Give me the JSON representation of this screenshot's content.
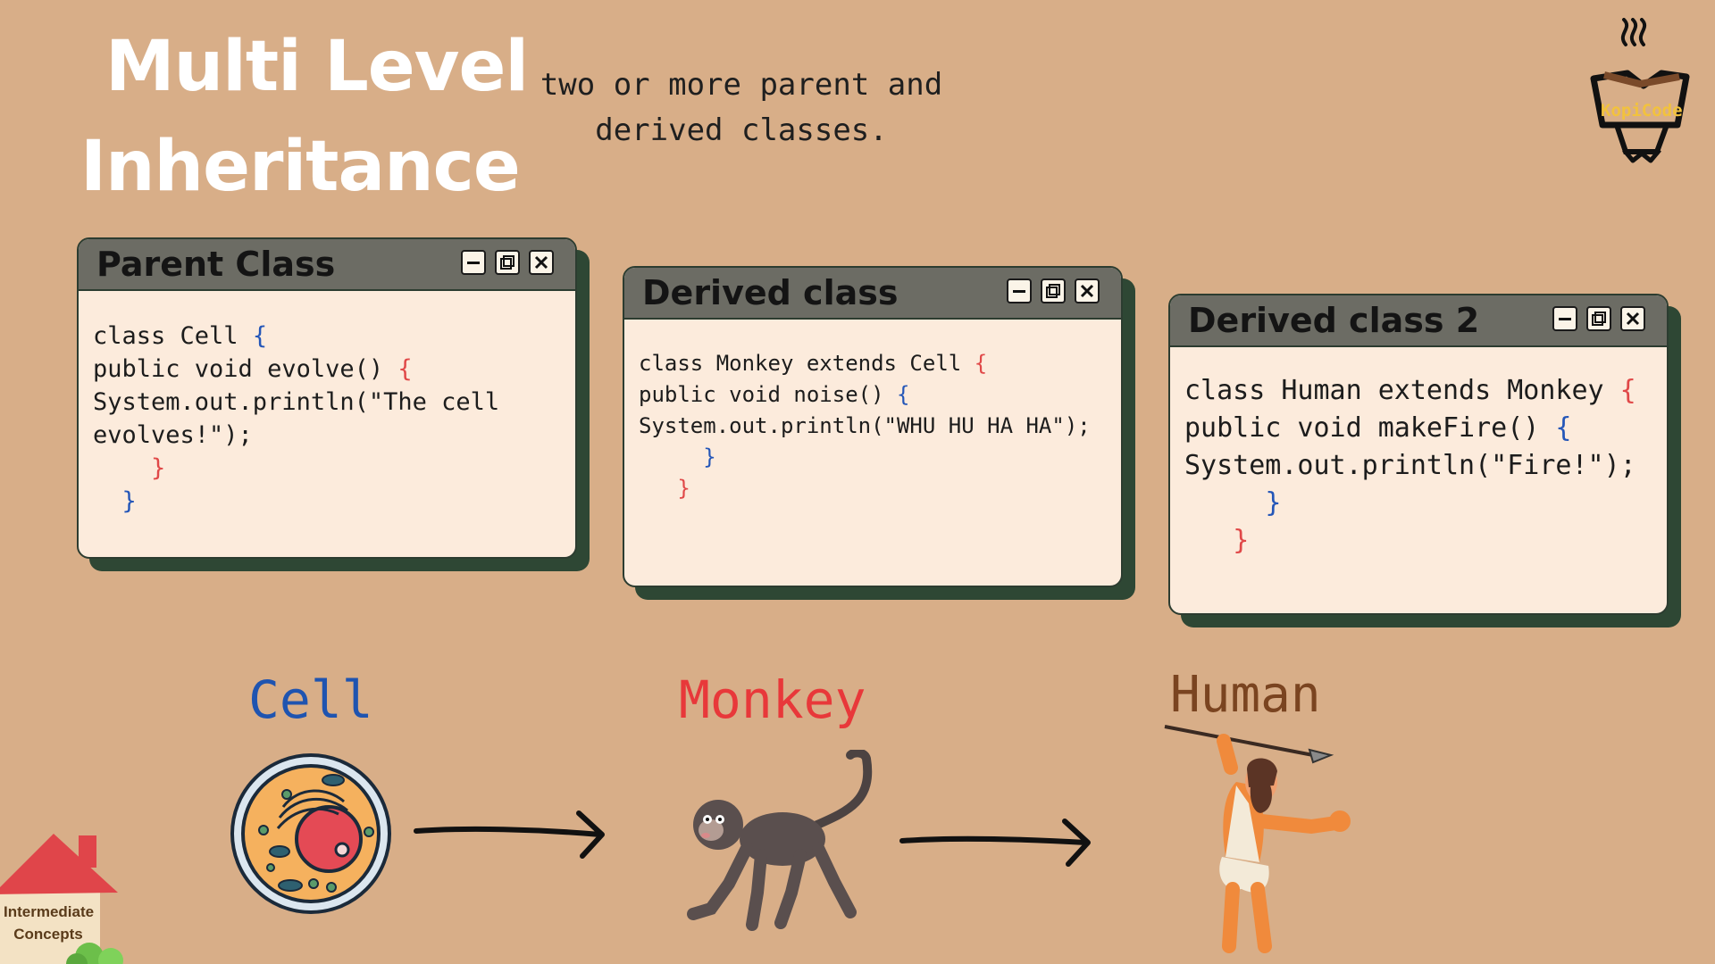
{
  "header": {
    "title_line1": "Multi Level",
    "title_line2": "Inheritance",
    "subtitle_line1": "two or more parent and",
    "subtitle_line2": "derived classes."
  },
  "logo": {
    "text": "KopiCode"
  },
  "windows": [
    {
      "title": "Parent Class",
      "lines": [
        "class Cell",
        "public void evolve()",
        "System.out.println(\"The cell",
        "evolves!\");"
      ]
    },
    {
      "title": "Derived class",
      "lines": [
        "class Monkey extends Cell",
        "public void noise()",
        "System.out.println(\"WHU HU HA HA\");"
      ]
    },
    {
      "title": "Derived class 2",
      "lines": [
        "class Human extends Monkey",
        "public void makeFire()",
        "System.out.println(\"Fire!\");"
      ]
    }
  ],
  "labels": {
    "cell": "Cell",
    "monkey": "Monkey",
    "human": "Human"
  },
  "badge": {
    "line1": "Intermediate",
    "line2": "Concepts"
  },
  "colors": {
    "background": "#d8ae88",
    "window_shadow": "#2e4734",
    "titlebar": "#6c6c64",
    "window_body": "#fcebdc",
    "bracket_red": "#e04848",
    "bracket_blue": "#2456b8",
    "cell_label": "#1f54b0",
    "monkey_label": "#e8383a",
    "human_label": "#7a4420"
  }
}
